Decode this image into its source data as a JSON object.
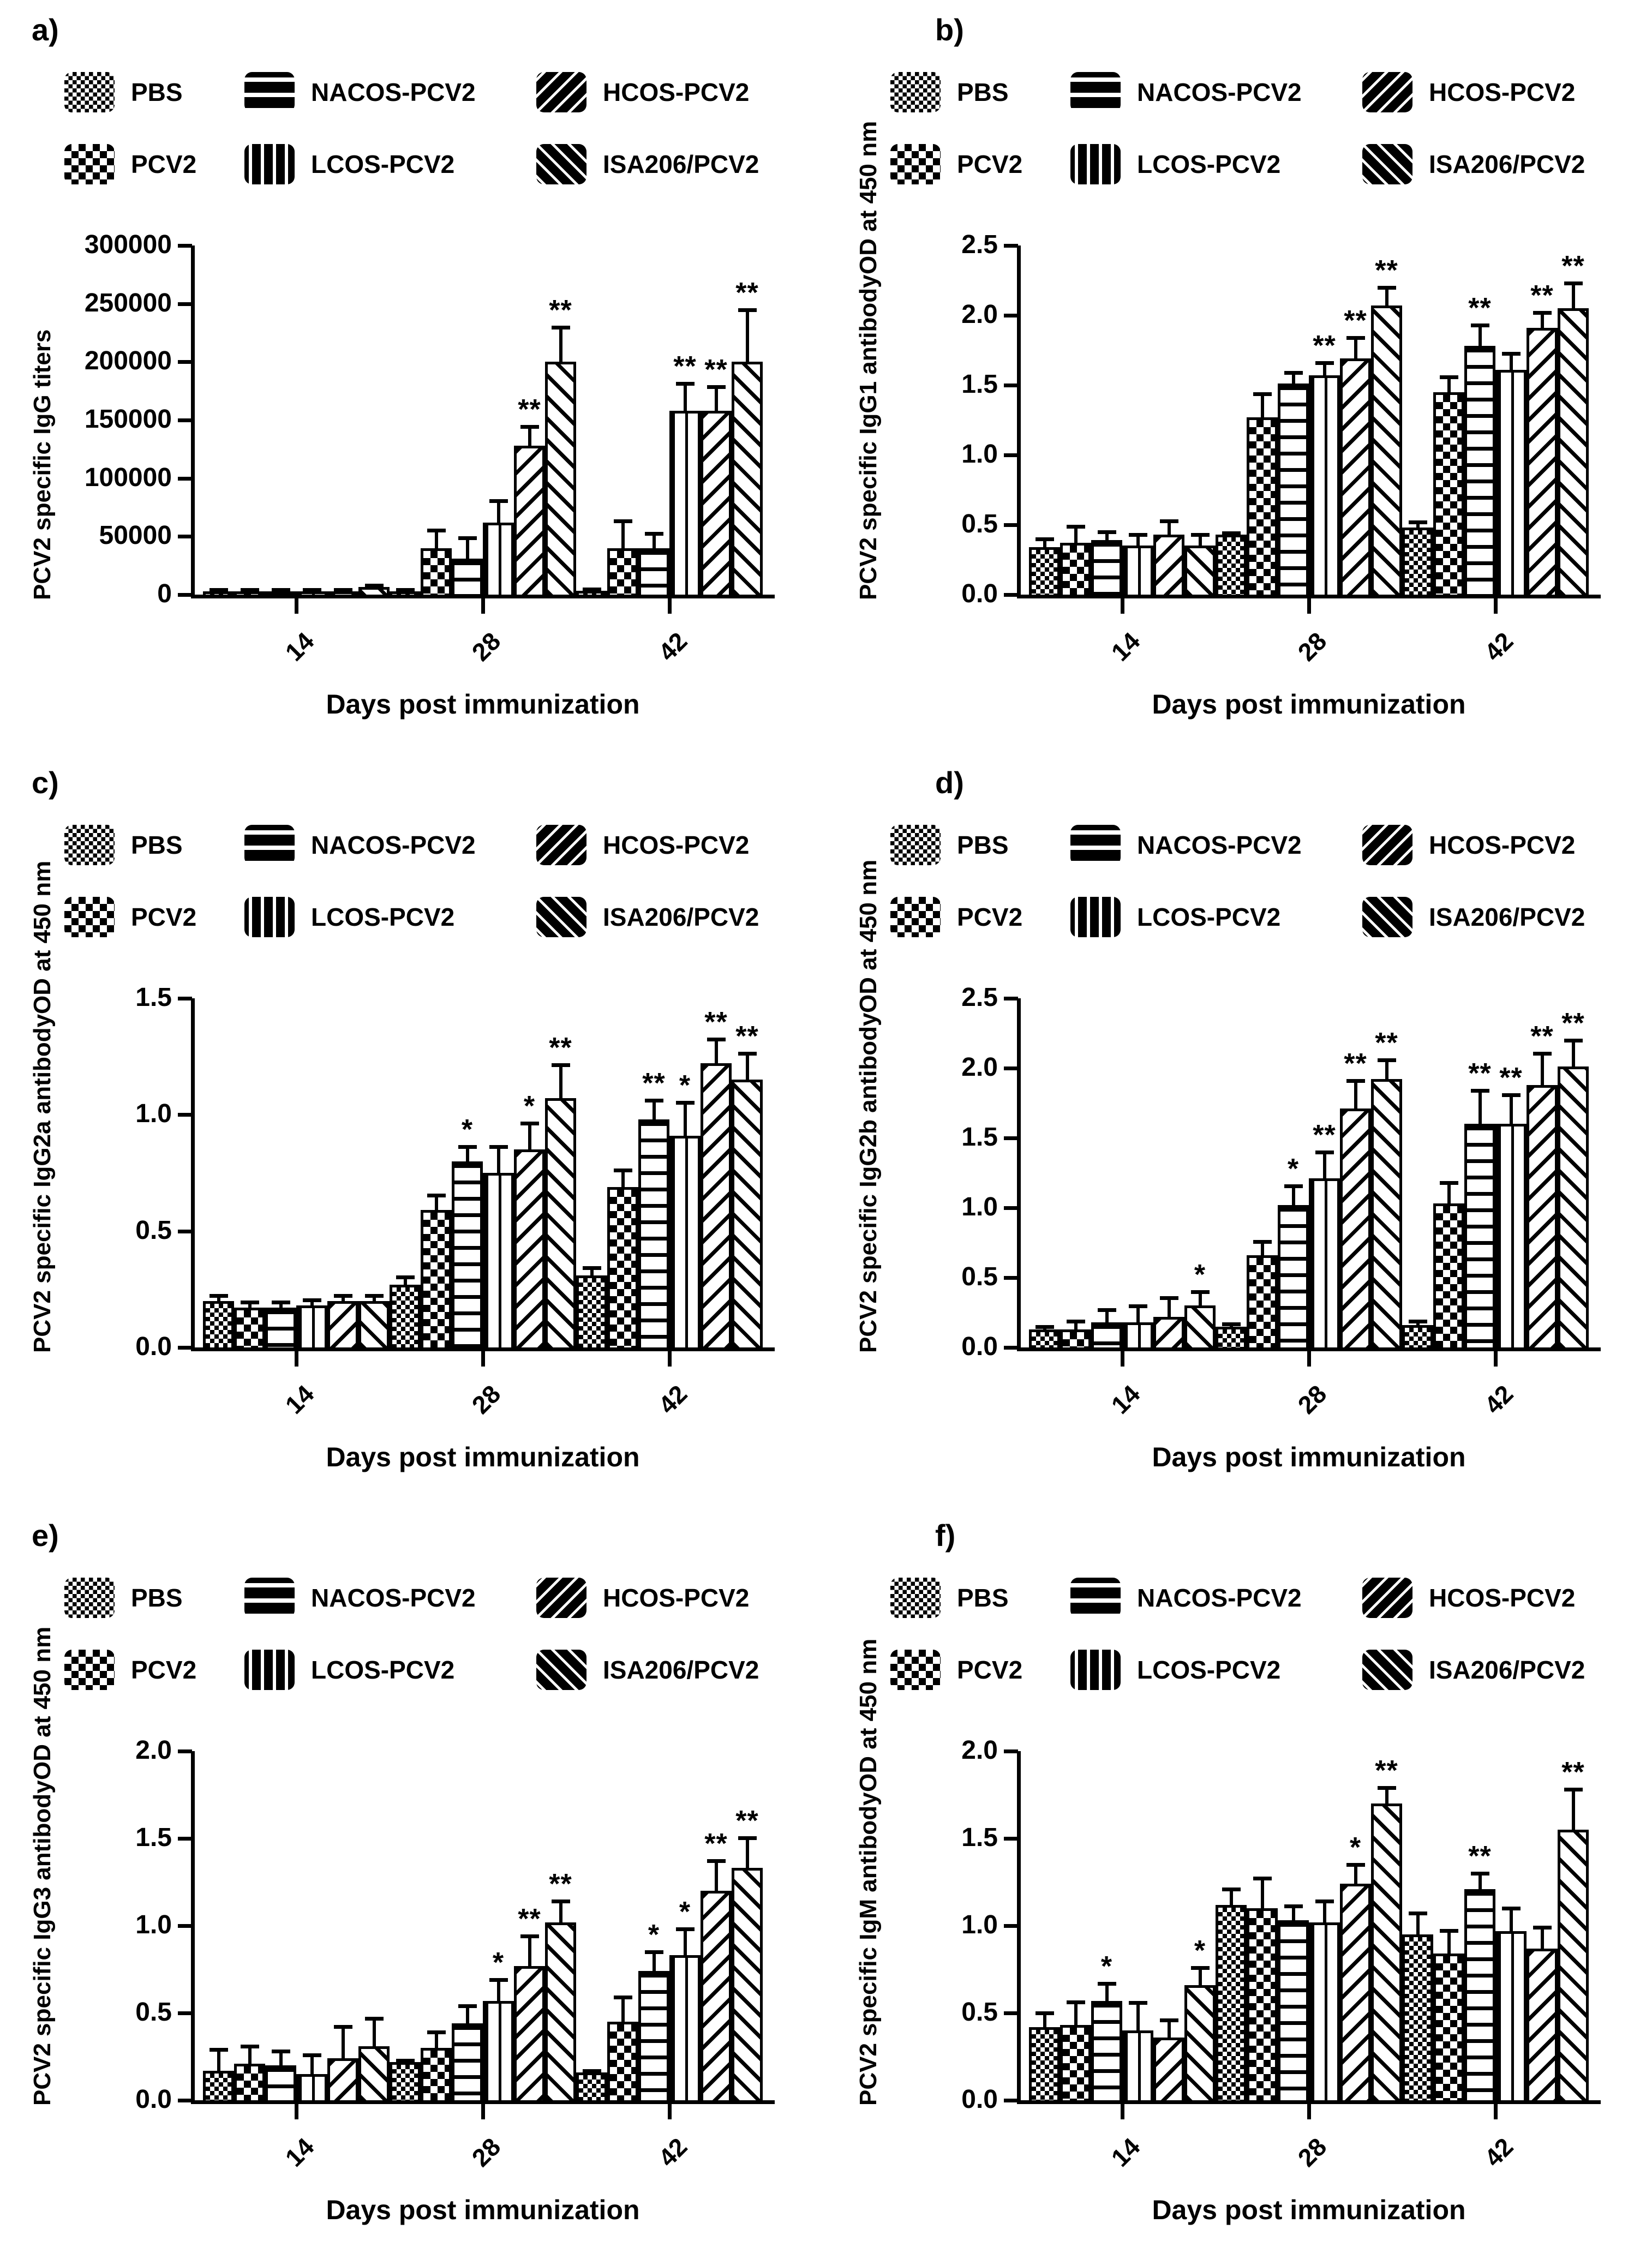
{
  "accent_color": "#000000",
  "background_color": "#ffffff",
  "xlabel": "Days post immunization",
  "categories": [
    "14",
    "28",
    "42"
  ],
  "groups": [
    {
      "name": "PBS",
      "pattern": "checker-fine"
    },
    {
      "name": "PCV2",
      "pattern": "checker-coarse"
    },
    {
      "name": "NACOS-PCV2",
      "pattern": "hlines"
    },
    {
      "name": "LCOS-PCV2",
      "pattern": "vlines"
    },
    {
      "name": "HCOS-PCV2",
      "pattern": "diag-forward"
    },
    {
      "name": "ISA206/PCV2",
      "pattern": "diag-back"
    }
  ],
  "chart_data": [
    {
      "type": "bar",
      "letter": "a)",
      "ylabel": "PCV2 specific IgG titers",
      "ylabel2": "",
      "xlabel": "Days post immunization",
      "ylim": [
        0,
        300000
      ],
      "yticks": [
        "300000",
        "250000",
        "200000",
        "150000",
        "100000",
        "50000",
        "0"
      ],
      "legend_position": "top",
      "grid": false,
      "series": [
        {
          "name": "PBS",
          "values": [
            800,
            2000,
            3500
          ],
          "errors": [
            400,
            1000,
            1500
          ],
          "sig": [
            "",
            "",
            ""
          ]
        },
        {
          "name": "PCV2",
          "values": [
            1200,
            40000,
            40000
          ],
          "errors": [
            600,
            17000,
            25000
          ],
          "sig": [
            "",
            "",
            ""
          ]
        },
        {
          "name": "NACOS-PCV2",
          "values": [
            2800,
            31000,
            40000
          ],
          "errors": [
            1200,
            19000,
            14000
          ],
          "sig": [
            "",
            "",
            ""
          ]
        },
        {
          "name": "LCOS-PCV2",
          "values": [
            2800,
            62000,
            158000
          ],
          "errors": [
            1200,
            20000,
            25000
          ],
          "sig": [
            "",
            "",
            "**"
          ]
        },
        {
          "name": "HCOS-PCV2",
          "values": [
            2800,
            128000,
            158000
          ],
          "errors": [
            1500,
            18000,
            22000
          ],
          "sig": [
            "",
            "**",
            "**"
          ]
        },
        {
          "name": "ISA206/PCV2",
          "values": [
            6500,
            200000,
            200000
          ],
          "errors": [
            1800,
            31000,
            46000
          ],
          "sig": [
            "",
            "**",
            "**"
          ]
        }
      ]
    },
    {
      "type": "bar",
      "letter": "b)",
      "ylabel": "PCV2 specific IgG1 antibody",
      "ylabel2": "OD at 450 nm",
      "xlabel": "Days post immunization",
      "ylim": [
        0,
        2.5
      ],
      "yticks": [
        "2.5",
        "2.0",
        "1.5",
        "1.0",
        "0.5",
        "0.0"
      ],
      "legend_position": "top",
      "grid": false,
      "series": [
        {
          "name": "PBS",
          "values": [
            0.34,
            0.43,
            0.48
          ],
          "errors": [
            0.07,
            0.02,
            0.05
          ],
          "sig": [
            "",
            "",
            ""
          ]
        },
        {
          "name": "PCV2",
          "values": [
            0.37,
            1.27,
            1.45
          ],
          "errors": [
            0.13,
            0.18,
            0.12
          ],
          "sig": [
            "",
            "",
            ""
          ]
        },
        {
          "name": "NACOS-PCV2",
          "values": [
            0.39,
            1.51,
            1.78
          ],
          "errors": [
            0.07,
            0.09,
            0.16
          ],
          "sig": [
            "",
            "",
            "**"
          ]
        },
        {
          "name": "LCOS-PCV2",
          "values": [
            0.35,
            1.57,
            1.61
          ],
          "errors": [
            0.09,
            0.1,
            0.13
          ],
          "sig": [
            "",
            "**",
            ""
          ]
        },
        {
          "name": "HCOS-PCV2",
          "values": [
            0.43,
            1.69,
            1.91
          ],
          "errors": [
            0.11,
            0.16,
            0.12
          ],
          "sig": [
            "",
            "**",
            "**"
          ]
        },
        {
          "name": "ISA206/PCV2",
          "values": [
            0.35,
            2.07,
            2.05
          ],
          "errors": [
            0.09,
            0.14,
            0.19
          ],
          "sig": [
            "",
            "**",
            "**"
          ]
        }
      ]
    },
    {
      "type": "bar",
      "letter": "c)",
      "ylabel": "PCV2 specific IgG2a antibody",
      "ylabel2": "OD at 450 nm",
      "xlabel": "Days post immunization",
      "ylim": [
        0,
        1.5
      ],
      "yticks": [
        "1.5",
        "1.0",
        "0.5",
        "0.0"
      ],
      "legend_position": "top",
      "grid": false,
      "series": [
        {
          "name": "PBS",
          "values": [
            0.2,
            0.27,
            0.31
          ],
          "errors": [
            0.03,
            0.04,
            0.04
          ],
          "sig": [
            "",
            "",
            ""
          ]
        },
        {
          "name": "PCV2",
          "values": [
            0.17,
            0.59,
            0.69
          ],
          "errors": [
            0.03,
            0.07,
            0.08
          ],
          "sig": [
            "",
            "",
            ""
          ]
        },
        {
          "name": "NACOS-PCV2",
          "values": [
            0.17,
            0.8,
            0.98
          ],
          "errors": [
            0.03,
            0.07,
            0.09
          ],
          "sig": [
            "",
            "*",
            "**"
          ]
        },
        {
          "name": "LCOS-PCV2",
          "values": [
            0.18,
            0.75,
            0.91
          ],
          "errors": [
            0.03,
            0.12,
            0.15
          ],
          "sig": [
            "",
            "",
            "*"
          ]
        },
        {
          "name": "HCOS-PCV2",
          "values": [
            0.2,
            0.85,
            1.22
          ],
          "errors": [
            0.03,
            0.12,
            0.11
          ],
          "sig": [
            "",
            "*",
            "**"
          ]
        },
        {
          "name": "ISA206/PCV2",
          "values": [
            0.2,
            1.07,
            1.15
          ],
          "errors": [
            0.03,
            0.15,
            0.12
          ],
          "sig": [
            "",
            "**",
            "**"
          ]
        }
      ]
    },
    {
      "type": "bar",
      "letter": "d)",
      "ylabel": "PCV2 specific IgG2b antibody",
      "ylabel2": "OD at 450 nm",
      "xlabel": "Days post immunization",
      "ylim": [
        0,
        2.5
      ],
      "yticks": [
        "2.5",
        "2.0",
        "1.5",
        "1.0",
        "0.5",
        "0.0"
      ],
      "legend_position": "top",
      "grid": false,
      "series": [
        {
          "name": "PBS",
          "values": [
            0.13,
            0.15,
            0.16
          ],
          "errors": [
            0.03,
            0.03,
            0.04
          ],
          "sig": [
            "",
            "",
            ""
          ]
        },
        {
          "name": "PCV2",
          "values": [
            0.13,
            0.66,
            1.03
          ],
          "errors": [
            0.07,
            0.11,
            0.16
          ],
          "sig": [
            "",
            "",
            ""
          ]
        },
        {
          "name": "NACOS-PCV2",
          "values": [
            0.18,
            1.02,
            1.6
          ],
          "errors": [
            0.1,
            0.15,
            0.25
          ],
          "sig": [
            "",
            "*",
            "**"
          ]
        },
        {
          "name": "LCOS-PCV2",
          "values": [
            0.18,
            1.21,
            1.6
          ],
          "errors": [
            0.13,
            0.2,
            0.22
          ],
          "sig": [
            "",
            "**",
            "**"
          ]
        },
        {
          "name": "HCOS-PCV2",
          "values": [
            0.22,
            1.71,
            1.88
          ],
          "errors": [
            0.15,
            0.21,
            0.24
          ],
          "sig": [
            "",
            "**",
            "**"
          ]
        },
        {
          "name": "ISA206/PCV2",
          "values": [
            0.3,
            1.92,
            2.01
          ],
          "errors": [
            0.11,
            0.15,
            0.2
          ],
          "sig": [
            "*",
            "**",
            "**"
          ]
        }
      ]
    },
    {
      "type": "bar",
      "letter": "e)",
      "ylabel": "PCV2 specific IgG3 antibody",
      "ylabel2": "OD at 450 nm",
      "xlabel": "Days post immunization",
      "ylim": [
        0,
        2.0
      ],
      "yticks": [
        "2.0",
        "1.5",
        "1.0",
        "0.5",
        "0.0"
      ],
      "legend_position": "top",
      "grid": false,
      "series": [
        {
          "name": "PBS",
          "values": [
            0.17,
            0.22,
            0.16
          ],
          "errors": [
            0.13,
            0.02,
            0.02
          ],
          "sig": [
            "",
            "",
            ""
          ]
        },
        {
          "name": "PCV2",
          "values": [
            0.21,
            0.3,
            0.45
          ],
          "errors": [
            0.11,
            0.1,
            0.15
          ],
          "sig": [
            "",
            "",
            ""
          ]
        },
        {
          "name": "NACOS-PCV2",
          "values": [
            0.2,
            0.44,
            0.74
          ],
          "errors": [
            0.09,
            0.11,
            0.12
          ],
          "sig": [
            "",
            "",
            "*"
          ]
        },
        {
          "name": "LCOS-PCV2",
          "values": [
            0.15,
            0.57,
            0.83
          ],
          "errors": [
            0.12,
            0.13,
            0.16
          ],
          "sig": [
            "",
            "*",
            "*"
          ]
        },
        {
          "name": "HCOS-PCV2",
          "values": [
            0.24,
            0.77,
            1.2
          ],
          "errors": [
            0.19,
            0.18,
            0.18
          ],
          "sig": [
            "",
            "**",
            "**"
          ]
        },
        {
          "name": "ISA206/PCV2",
          "values": [
            0.31,
            1.02,
            1.33
          ],
          "errors": [
            0.17,
            0.13,
            0.18
          ],
          "sig": [
            "",
            "**",
            "**"
          ]
        }
      ]
    },
    {
      "type": "bar",
      "letter": "f)",
      "ylabel": "PCV2 specific IgM antibody",
      "ylabel2": "OD at 450 nm",
      "xlabel": "Days post immunization",
      "ylim": [
        0,
        2.0
      ],
      "yticks": [
        "2.0",
        "1.5",
        "1.0",
        "0.5",
        "0.0"
      ],
      "legend_position": "top",
      "grid": false,
      "series": [
        {
          "name": "PBS",
          "values": [
            0.42,
            1.12,
            0.95
          ],
          "errors": [
            0.09,
            0.1,
            0.13
          ],
          "sig": [
            "",
            "",
            ""
          ]
        },
        {
          "name": "PCV2",
          "values": [
            0.43,
            1.1,
            0.84
          ],
          "errors": [
            0.14,
            0.18,
            0.14
          ],
          "sig": [
            "",
            "",
            ""
          ]
        },
        {
          "name": "NACOS-PCV2",
          "values": [
            0.57,
            1.03,
            1.21
          ],
          "errors": [
            0.11,
            0.09,
            0.1
          ],
          "sig": [
            "*",
            "",
            "**"
          ]
        },
        {
          "name": "LCOS-PCV2",
          "values": [
            0.4,
            1.02,
            0.97
          ],
          "errors": [
            0.17,
            0.13,
            0.14
          ],
          "sig": [
            "",
            "",
            ""
          ]
        },
        {
          "name": "HCOS-PCV2",
          "values": [
            0.36,
            1.24,
            0.87
          ],
          "errors": [
            0.11,
            0.12,
            0.13
          ],
          "sig": [
            "",
            "*",
            ""
          ]
        },
        {
          "name": "ISA206/PCV2",
          "values": [
            0.66,
            1.7,
            1.55
          ],
          "errors": [
            0.11,
            0.1,
            0.24
          ],
          "sig": [
            "*",
            "**",
            "**"
          ]
        }
      ]
    }
  ]
}
